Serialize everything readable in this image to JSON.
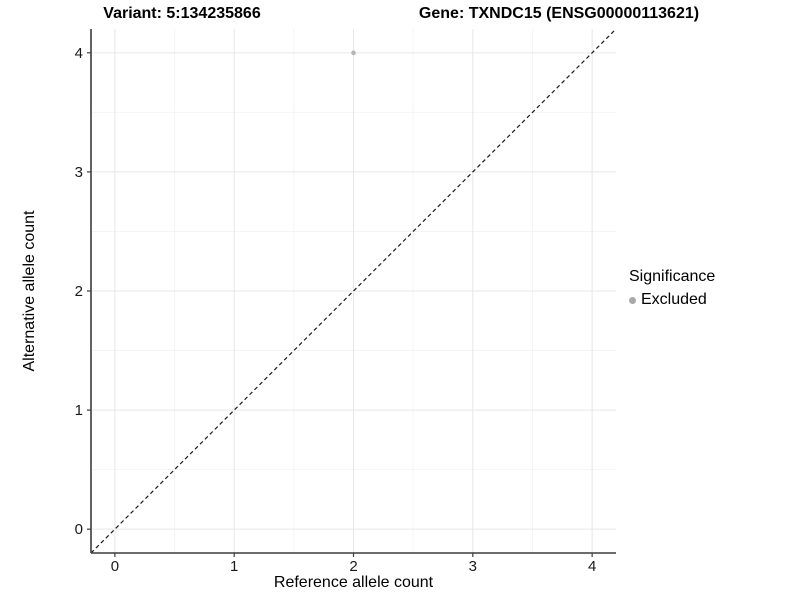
{
  "chart_data": {
    "type": "scatter",
    "title_variant": "Variant: 5:134235866",
    "title_gene": "Gene: TXNDC15 (ENSG00000113621)",
    "xlabel": "Reference allele count",
    "ylabel": "Alternative allele count",
    "xlim": [
      -0.2,
      4.2
    ],
    "ylim": [
      -0.2,
      4.2
    ],
    "x_ticks": [
      0,
      1,
      2,
      3,
      4
    ],
    "y_ticks": [
      0,
      1,
      2,
      3,
      4
    ],
    "x_minor_ticks": [
      0.5,
      1.5,
      2.5,
      3.5
    ],
    "y_minor_ticks": [
      0.5,
      1.5,
      2.5,
      3.5
    ],
    "grid": "on",
    "identity_line": {
      "style": "dashed",
      "color": "#1a1a1a"
    },
    "series": [
      {
        "name": "Excluded",
        "color": "#b5b5b5",
        "points": [
          [
            2,
            4
          ]
        ]
      }
    ],
    "legend": {
      "title": "Significance",
      "position": "right",
      "entries": [
        {
          "label": "Excluded",
          "color": "#a9a9a9"
        }
      ]
    }
  }
}
